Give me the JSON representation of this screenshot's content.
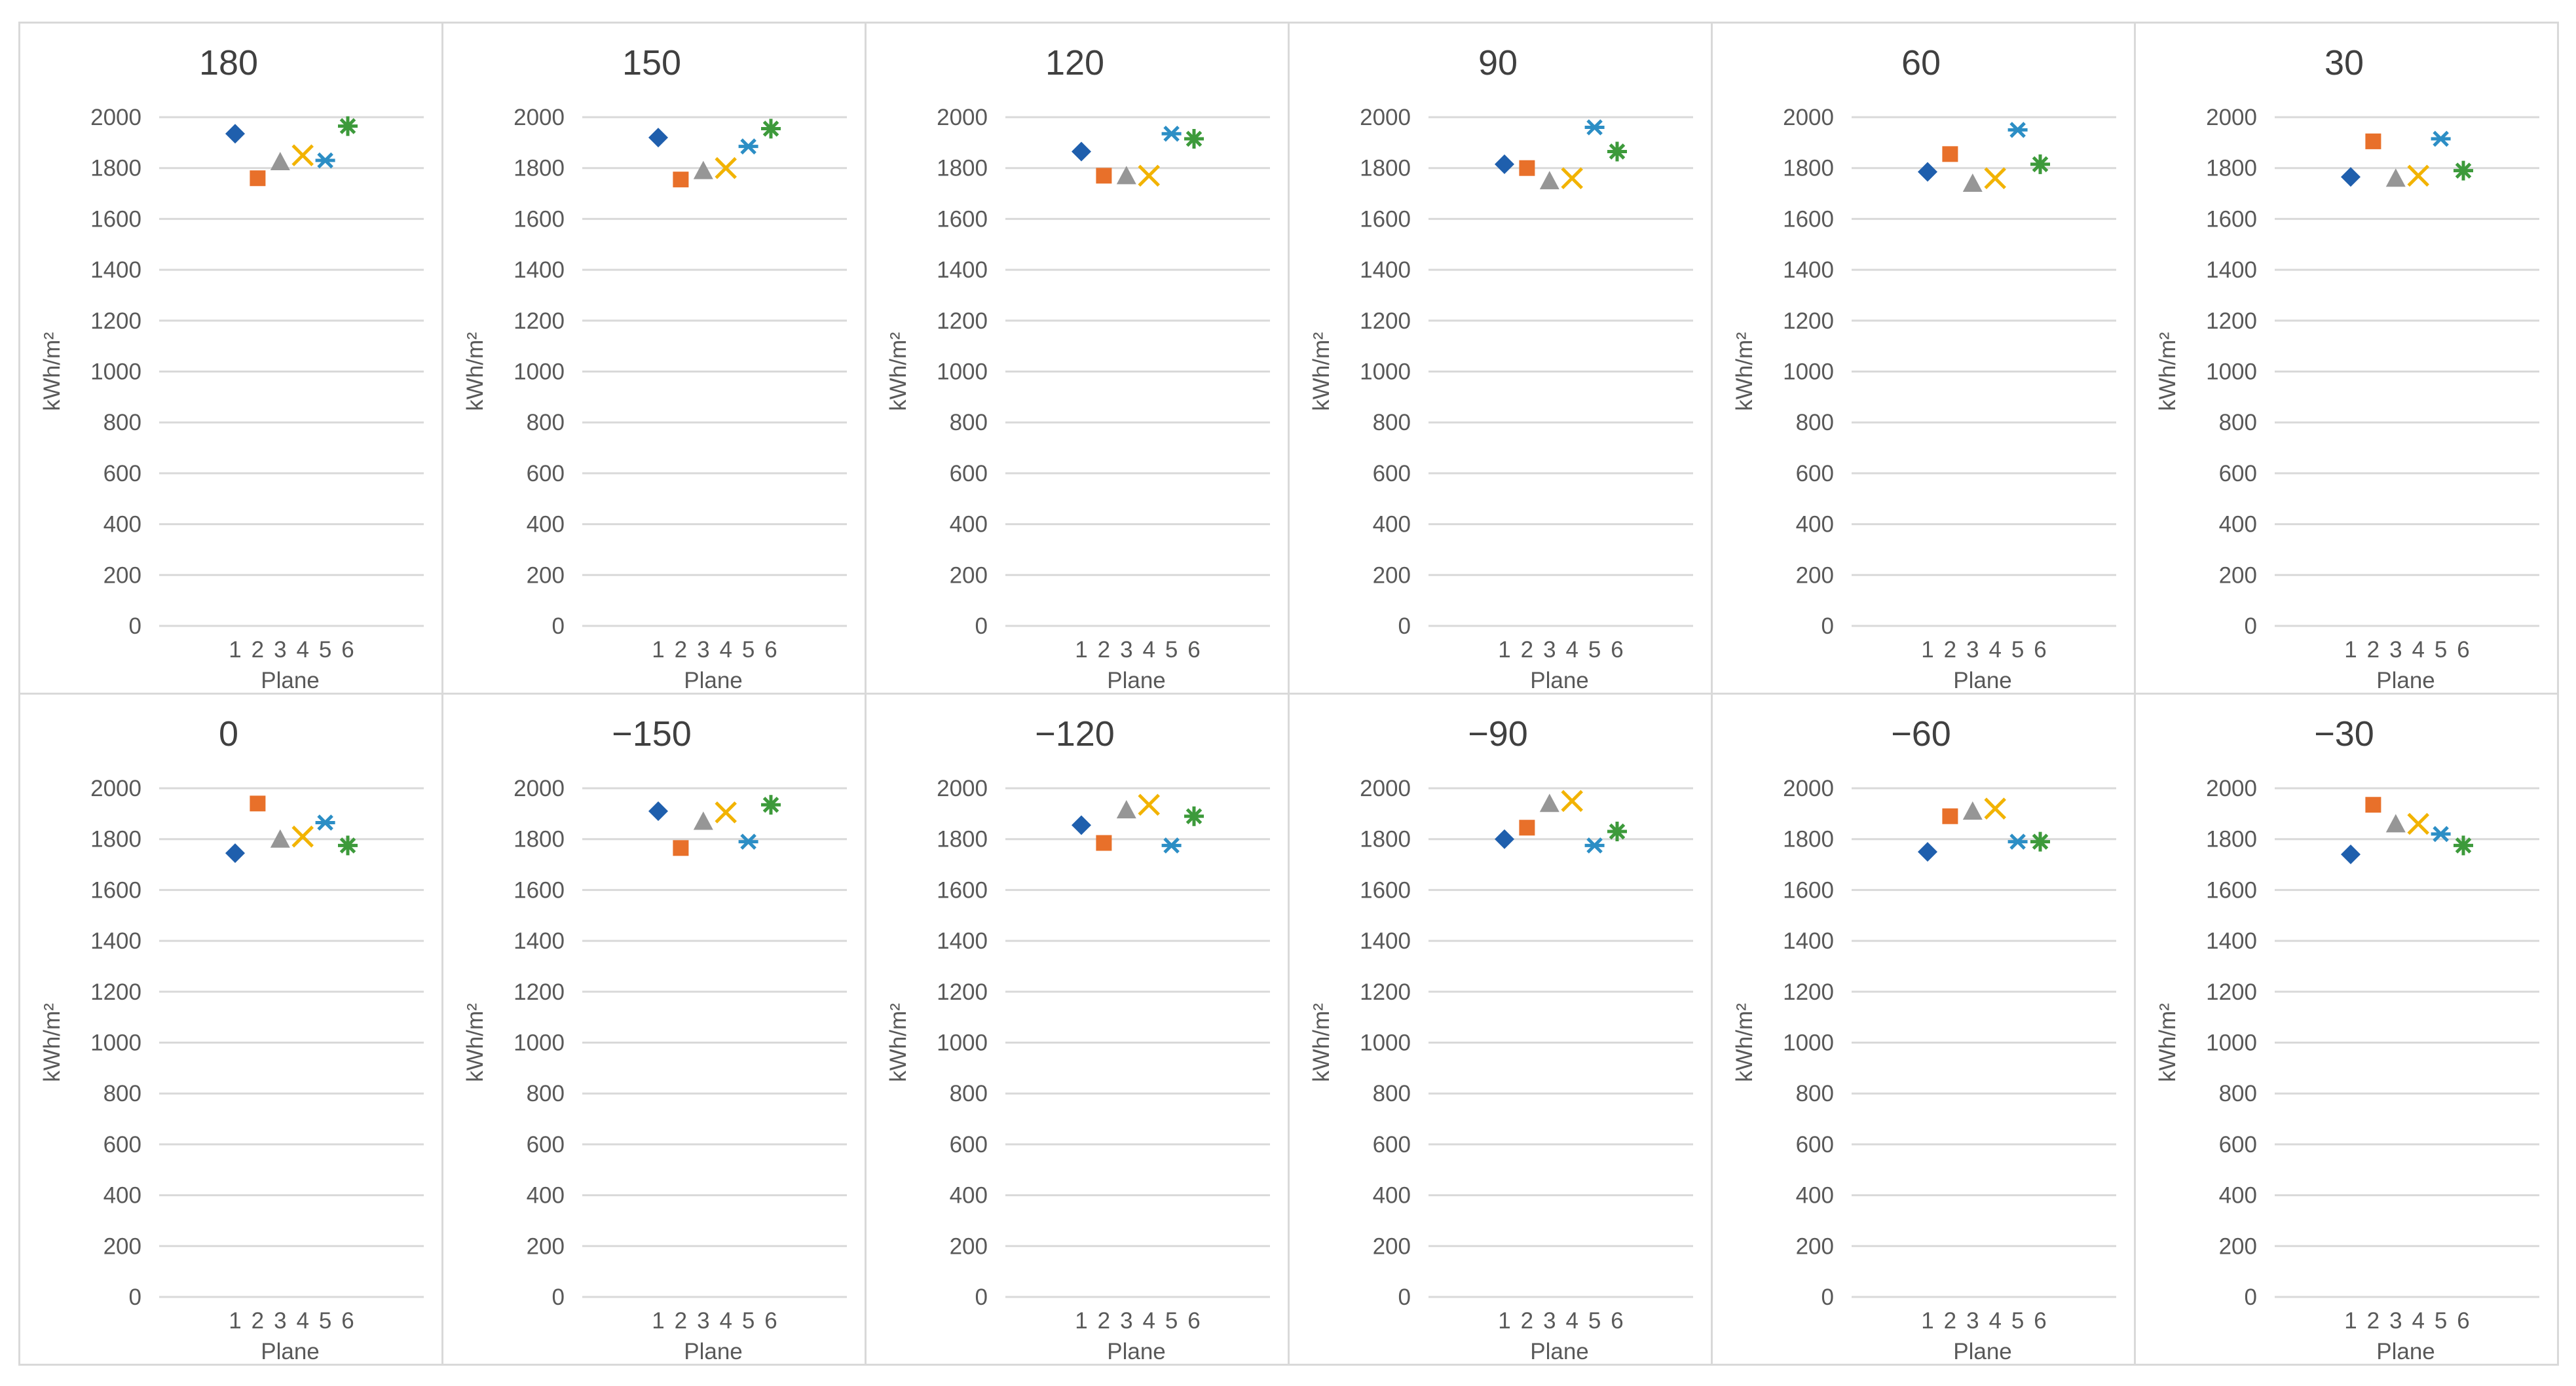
{
  "colors": {
    "series": [
      "#1f5fad",
      "#e8702a",
      "#969696",
      "#f2b301",
      "#2c8ec5",
      "#3d9a3b"
    ],
    "grid": "#d9d9d9",
    "text": "#595959",
    "title": "#404040"
  },
  "chart_data": [
    {
      "type": "scatter",
      "title": "180",
      "xlabel": "Plane",
      "ylabel": "kWh/m²",
      "ylim": [
        0,
        2000
      ],
      "yticks": [
        "0",
        "200",
        "400",
        "600",
        "800",
        "1000",
        "1200",
        "1400",
        "1600",
        "1800",
        "2000"
      ],
      "categories": [
        "1",
        "2",
        "3",
        "4",
        "5",
        "6"
      ],
      "values": [
        1935,
        1760,
        1825,
        1850,
        1830,
        1965
      ]
    },
    {
      "type": "scatter",
      "title": "150",
      "xlabel": "Plane",
      "ylabel": "kWh/m²",
      "ylim": [
        0,
        2000
      ],
      "yticks": [
        "0",
        "200",
        "400",
        "600",
        "800",
        "1000",
        "1200",
        "1400",
        "1600",
        "1800",
        "2000"
      ],
      "categories": [
        "1",
        "2",
        "3",
        "4",
        "5",
        "6"
      ],
      "values": [
        1920,
        1755,
        1790,
        1800,
        1885,
        1955
      ]
    },
    {
      "type": "scatter",
      "title": "120",
      "xlabel": "Plane",
      "ylabel": "kWh/m²",
      "ylim": [
        0,
        2000
      ],
      "yticks": [
        "0",
        "200",
        "400",
        "600",
        "800",
        "1000",
        "1200",
        "1400",
        "1600",
        "1800",
        "2000"
      ],
      "categories": [
        "1",
        "2",
        "3",
        "4",
        "5",
        "6"
      ],
      "values": [
        1865,
        1770,
        1770,
        1770,
        1935,
        1915
      ]
    },
    {
      "type": "scatter",
      "title": "90",
      "xlabel": "Plane",
      "ylabel": "kWh/m²",
      "ylim": [
        0,
        2000
      ],
      "yticks": [
        "0",
        "200",
        "400",
        "600",
        "800",
        "1000",
        "1200",
        "1400",
        "1600",
        "1800",
        "2000"
      ],
      "categories": [
        "1",
        "2",
        "3",
        "4",
        "5",
        "6"
      ],
      "values": [
        1815,
        1800,
        1750,
        1760,
        1960,
        1865
      ]
    },
    {
      "type": "scatter",
      "title": "60",
      "xlabel": "Plane",
      "ylabel": "kWh/m²",
      "ylim": [
        0,
        2000
      ],
      "yticks": [
        "0",
        "200",
        "400",
        "600",
        "800",
        "1000",
        "1200",
        "1400",
        "1600",
        "1800",
        "2000"
      ],
      "categories": [
        "1",
        "2",
        "3",
        "4",
        "5",
        "6"
      ],
      "values": [
        1785,
        1855,
        1740,
        1760,
        1950,
        1815
      ]
    },
    {
      "type": "scatter",
      "title": "30",
      "xlabel": "Plane",
      "ylabel": "kWh/m²",
      "ylim": [
        0,
        2000
      ],
      "yticks": [
        "0",
        "200",
        "400",
        "600",
        "800",
        "1000",
        "1200",
        "1400",
        "1600",
        "1800",
        "2000"
      ],
      "categories": [
        "1",
        "2",
        "3",
        "4",
        "5",
        "6"
      ],
      "values": [
        1765,
        1905,
        1760,
        1770,
        1915,
        1790
      ]
    },
    {
      "type": "scatter",
      "title": "0",
      "xlabel": "Plane",
      "ylabel": "kWh/m²",
      "ylim": [
        0,
        2000
      ],
      "yticks": [
        "0",
        "200",
        "400",
        "600",
        "800",
        "1000",
        "1200",
        "1400",
        "1600",
        "1800",
        "2000"
      ],
      "categories": [
        "1",
        "2",
        "3",
        "4",
        "5",
        "6"
      ],
      "values": [
        1745,
        1940,
        1800,
        1810,
        1865,
        1775
      ]
    },
    {
      "type": "scatter",
      "title": "−150",
      "xlabel": "Plane",
      "ylabel": "kWh/m²",
      "ylim": [
        0,
        2000
      ],
      "yticks": [
        "0",
        "200",
        "400",
        "600",
        "800",
        "1000",
        "1200",
        "1400",
        "1600",
        "1800",
        "2000"
      ],
      "categories": [
        "1",
        "2",
        "3",
        "4",
        "5",
        "6"
      ],
      "values": [
        1910,
        1765,
        1870,
        1905,
        1790,
        1935
      ]
    },
    {
      "type": "scatter",
      "title": "−120",
      "xlabel": "Plane",
      "ylabel": "kWh/m²",
      "ylim": [
        0,
        2000
      ],
      "yticks": [
        "0",
        "200",
        "400",
        "600",
        "800",
        "1000",
        "1200",
        "1400",
        "1600",
        "1800",
        "2000"
      ],
      "categories": [
        "1",
        "2",
        "3",
        "4",
        "5",
        "6"
      ],
      "values": [
        1855,
        1785,
        1915,
        1935,
        1775,
        1890
      ]
    },
    {
      "type": "scatter",
      "title": "−90",
      "xlabel": "Plane",
      "ylabel": "kWh/m²",
      "ylim": [
        0,
        2000
      ],
      "yticks": [
        "0",
        "200",
        "400",
        "600",
        "800",
        "1000",
        "1200",
        "1400",
        "1600",
        "1800",
        "2000"
      ],
      "categories": [
        "1",
        "2",
        "3",
        "4",
        "5",
        "6"
      ],
      "values": [
        1800,
        1845,
        1940,
        1950,
        1775,
        1830
      ]
    },
    {
      "type": "scatter",
      "title": "−60",
      "xlabel": "Plane",
      "ylabel": "kWh/m²",
      "ylim": [
        0,
        2000
      ],
      "yticks": [
        "0",
        "200",
        "400",
        "600",
        "800",
        "1000",
        "1200",
        "1400",
        "1600",
        "1800",
        "2000"
      ],
      "categories": [
        "1",
        "2",
        "3",
        "4",
        "5",
        "6"
      ],
      "values": [
        1750,
        1890,
        1910,
        1920,
        1790,
        1790
      ]
    },
    {
      "type": "scatter",
      "title": "−30",
      "xlabel": "Plane",
      "ylabel": "kWh/m²",
      "ylim": [
        0,
        2000
      ],
      "yticks": [
        "0",
        "200",
        "400",
        "600",
        "800",
        "1000",
        "1200",
        "1400",
        "1600",
        "1800",
        "2000"
      ],
      "categories": [
        "1",
        "2",
        "3",
        "4",
        "5",
        "6"
      ],
      "values": [
        1740,
        1935,
        1860,
        1860,
        1820,
        1775
      ]
    }
  ]
}
